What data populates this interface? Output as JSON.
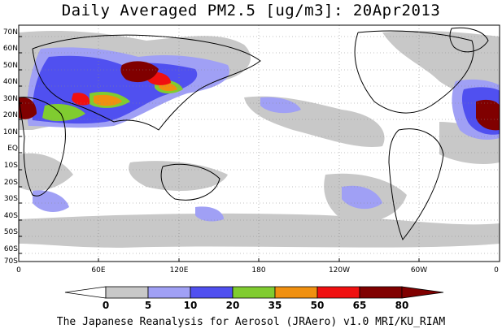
{
  "title": "Daily Averaged PM2.5 [ug/m3]: 20Apr2013",
  "footer": "The Japanese Reanalysis for Aerosol (JRAero) v1.0 MRI/KU_RIAM",
  "lat_labels": [
    "70N",
    "60N",
    "50N",
    "40N",
    "30N",
    "20N",
    "10N",
    "EQ",
    "10S",
    "20S",
    "30S",
    "40S",
    "50S",
    "60S",
    "70S"
  ],
  "lon_labels": [
    "0",
    "60E",
    "120E",
    "180",
    "120W",
    "60W",
    "0"
  ],
  "colorbar": {
    "levels": [
      "0",
      "5",
      "10",
      "20",
      "35",
      "50",
      "65",
      "80"
    ],
    "colors": [
      "#ffffff",
      "#c8c8c8",
      "#a0a0f5",
      "#5050f0",
      "#80cc30",
      "#f09010",
      "#f01010",
      "#800000"
    ]
  }
}
